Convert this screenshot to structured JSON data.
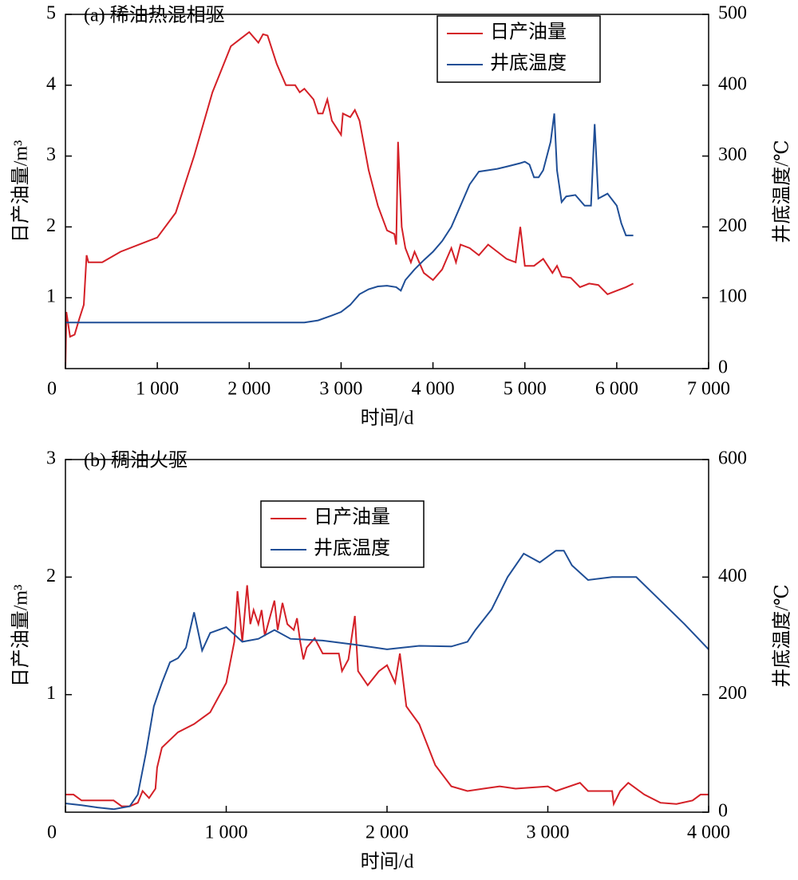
{
  "chart_data": [
    {
      "type": "line",
      "title": "(a) 稀油热混相驱",
      "xlabel": "时间/d",
      "ylabel": "日产油量/m³",
      "y2label": "井底温度/℃",
      "xlim": [
        0,
        7000
      ],
      "xticks": [
        0,
        {
          "value": 1000,
          "label": "1 000"
        },
        {
          "value": 2000,
          "label": "2 000"
        },
        {
          "value": 3000,
          "label": "3 000"
        },
        {
          "value": 4000,
          "label": "4 000"
        },
        {
          "value": 5000,
          "label": "5 000"
        },
        {
          "value": 6000,
          "label": "6 000"
        },
        {
          "value": 7000,
          "label": "7 000"
        }
      ],
      "ylim": [
        0,
        5
      ],
      "yticks": [
        1,
        2,
        3,
        4,
        5
      ],
      "y2lim": [
        0,
        500
      ],
      "y2ticks": [
        0,
        100,
        200,
        300,
        400,
        500
      ],
      "legend": "upper right",
      "series": [
        {
          "name": "日产油量",
          "color": "#d42027",
          "x": [
            0,
            10,
            50,
            100,
            150,
            200,
            230,
            250,
            400,
            600,
            800,
            1000,
            1200,
            1400,
            1600,
            1800,
            1900,
            2000,
            2100,
            2150,
            2200,
            2300,
            2400,
            2500,
            2550,
            2600,
            2700,
            2750,
            2800,
            2850,
            2900,
            3000,
            3020,
            3100,
            3150,
            3200,
            3300,
            3400,
            3500,
            3580,
            3600,
            3620,
            3660,
            3700,
            3760,
            3800,
            3850,
            3900,
            4000,
            4100,
            4150,
            4200,
            4250,
            4300,
            4400,
            4500,
            4600,
            4700,
            4800,
            4900,
            4950,
            5000,
            5100,
            5200,
            5300,
            5350,
            5400,
            5500,
            5600,
            5700,
            5800,
            5900,
            6000,
            6100,
            6180
          ],
          "values": [
            0,
            0.8,
            0.45,
            0.48,
            0.7,
            0.9,
            1.6,
            1.5,
            1.5,
            1.65,
            1.75,
            1.85,
            2.2,
            3.0,
            3.9,
            4.55,
            4.65,
            4.75,
            4.6,
            4.72,
            4.7,
            4.3,
            4.0,
            4.0,
            3.9,
            3.95,
            3.8,
            3.6,
            3.6,
            3.8,
            3.5,
            3.3,
            3.6,
            3.55,
            3.65,
            3.5,
            2.8,
            2.3,
            1.95,
            1.9,
            1.75,
            3.2,
            2.0,
            1.7,
            1.5,
            1.65,
            1.5,
            1.35,
            1.25,
            1.4,
            1.55,
            1.7,
            1.5,
            1.75,
            1.7,
            1.6,
            1.75,
            1.65,
            1.55,
            1.5,
            2.0,
            1.45,
            1.45,
            1.55,
            1.35,
            1.45,
            1.3,
            1.28,
            1.15,
            1.2,
            1.18,
            1.05,
            1.1,
            1.15,
            1.2
          ]
        },
        {
          "name": "井底温度",
          "color": "#1f4e96",
          "axis": "y2",
          "x": [
            0,
            1000,
            2000,
            2600,
            2750,
            2900,
            3000,
            3100,
            3200,
            3300,
            3400,
            3500,
            3600,
            3650,
            3700,
            3800,
            3900,
            4000,
            4100,
            4200,
            4300,
            4400,
            4500,
            4600,
            4700,
            4800,
            4950,
            5000,
            5050,
            5100,
            5150,
            5200,
            5280,
            5320,
            5350,
            5400,
            5450,
            5550,
            5650,
            5720,
            5760,
            5800,
            5900,
            6000,
            6050,
            6100,
            6180
          ],
          "values": [
            65,
            65,
            65,
            65,
            68,
            75,
            80,
            90,
            105,
            112,
            116,
            117,
            115,
            110,
            125,
            140,
            153,
            165,
            180,
            200,
            230,
            260,
            278,
            280,
            282,
            285,
            290,
            292,
            288,
            270,
            270,
            280,
            320,
            360,
            280,
            235,
            243,
            245,
            230,
            230,
            345,
            240,
            247,
            230,
            205,
            188,
            188
          ]
        }
      ]
    },
    {
      "type": "line",
      "title": "(b) 稠油火驱",
      "xlabel": "时间/d",
      "ylabel": "日产油量/m³",
      "y2label": "井底温度/℃",
      "xlim": [
        0,
        4000
      ],
      "xticks": [
        0,
        {
          "value": 1000,
          "label": "1 000"
        },
        {
          "value": 2000,
          "label": "2 000"
        },
        {
          "value": 3000,
          "label": "3 000"
        },
        {
          "value": 4000,
          "label": "4 000"
        }
      ],
      "ylim": [
        0,
        3
      ],
      "yticks": [
        1,
        2,
        3
      ],
      "y2lim": [
        0,
        600
      ],
      "y2ticks": [
        0,
        200,
        400,
        600
      ],
      "legend": "upper center",
      "series": [
        {
          "name": "日产油量",
          "color": "#d42027",
          "x": [
            0,
            50,
            100,
            200,
            300,
            350,
            400,
            450,
            480,
            520,
            560,
            570,
            600,
            700,
            800,
            900,
            1000,
            1050,
            1070,
            1100,
            1130,
            1150,
            1170,
            1200,
            1220,
            1240,
            1300,
            1320,
            1350,
            1380,
            1420,
            1440,
            1460,
            1480,
            1500,
            1550,
            1600,
            1700,
            1720,
            1760,
            1800,
            1820,
            1880,
            1950,
            2000,
            2050,
            2080,
            2120,
            2200,
            2300,
            2400,
            2500,
            2600,
            2700,
            2800,
            3000,
            3050,
            3200,
            3250,
            3400,
            3410,
            3450,
            3500,
            3600,
            3700,
            3800,
            3900,
            3950,
            4000
          ],
          "values": [
            0.15,
            0.15,
            0.1,
            0.1,
            0.1,
            0.05,
            0.05,
            0.08,
            0.18,
            0.12,
            0.2,
            0.38,
            0.55,
            0.68,
            0.75,
            0.85,
            1.1,
            1.45,
            1.88,
            1.45,
            1.93,
            1.6,
            1.72,
            1.6,
            1.72,
            1.5,
            1.8,
            1.55,
            1.78,
            1.6,
            1.55,
            1.65,
            1.45,
            1.3,
            1.4,
            1.48,
            1.35,
            1.35,
            1.2,
            1.3,
            1.67,
            1.2,
            1.08,
            1.2,
            1.25,
            1.1,
            1.35,
            0.9,
            0.75,
            0.4,
            0.22,
            0.18,
            0.2,
            0.22,
            0.2,
            0.22,
            0.18,
            0.25,
            0.18,
            0.18,
            0.07,
            0.18,
            0.25,
            0.15,
            0.08,
            0.07,
            0.1,
            0.15,
            0.15
          ]
        },
        {
          "name": "井底温度",
          "color": "#1f4e96",
          "axis": "y2",
          "x": [
            0,
            100,
            200,
            300,
            400,
            450,
            500,
            550,
            600,
            650,
            700,
            750,
            800,
            850,
            900,
            1000,
            1100,
            1200,
            1300,
            1400,
            1600,
            1800,
            2000,
            2200,
            2400,
            2500,
            2550,
            2650,
            2750,
            2850,
            2950,
            3050,
            3100,
            3150,
            3250,
            3400,
            3550,
            3700,
            3850,
            4000
          ],
          "values": [
            15,
            12,
            8,
            5,
            10,
            30,
            100,
            180,
            220,
            255,
            262,
            280,
            340,
            275,
            305,
            315,
            290,
            295,
            310,
            295,
            292,
            285,
            277,
            283,
            282,
            290,
            310,
            345,
            400,
            440,
            425,
            445,
            445,
            420,
            395,
            400,
            400,
            360,
            320,
            277
          ]
        }
      ]
    }
  ]
}
